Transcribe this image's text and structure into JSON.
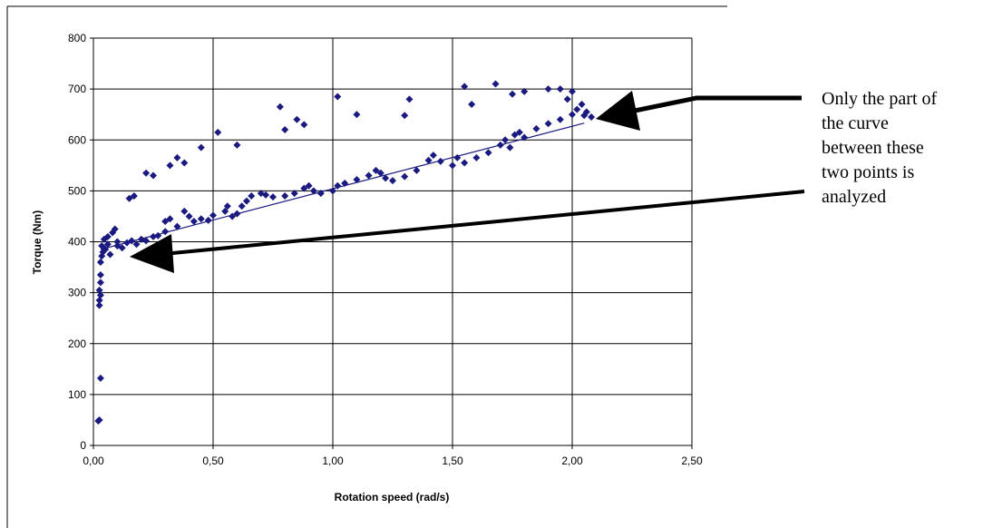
{
  "chart_data": {
    "type": "scatter",
    "title": "",
    "xlabel": "Rotation speed (rad/s)",
    "ylabel": "Torque (Nm)",
    "xlim": [
      0,
      2.5
    ],
    "ylim": [
      0,
      800
    ],
    "xticks": [
      0,
      0.5,
      1,
      1.5,
      2,
      2.5
    ],
    "xtick_labels": [
      "0,00",
      "0,50",
      "1,00",
      "1,50",
      "2,00",
      "2,50"
    ],
    "yticks": [
      0,
      100,
      200,
      300,
      400,
      500,
      600,
      700,
      800
    ],
    "ytick_labels": [
      "0",
      "100",
      "200",
      "300",
      "400",
      "500",
      "600",
      "700",
      "800"
    ],
    "grid": true,
    "marker_color": "#1a1a80",
    "series": [
      {
        "points": [
          [
            0.02,
            48
          ],
          [
            0.025,
            50
          ],
          [
            0.03,
            132
          ],
          [
            0.025,
            275
          ],
          [
            0.025,
            285
          ],
          [
            0.03,
            295
          ],
          [
            0.025,
            305
          ],
          [
            0.03,
            320
          ],
          [
            0.03,
            335
          ],
          [
            0.03,
            360
          ],
          [
            0.035,
            372
          ],
          [
            0.04,
            380
          ],
          [
            0.035,
            392
          ],
          [
            0.045,
            405
          ],
          [
            0.05,
            385
          ],
          [
            0.06,
            395
          ],
          [
            0.07,
            375
          ],
          [
            0.06,
            410
          ],
          [
            0.08,
            418
          ],
          [
            0.09,
            425
          ],
          [
            0.1,
            400
          ],
          [
            0.1,
            392
          ],
          [
            0.12,
            388
          ],
          [
            0.14,
            398
          ],
          [
            0.16,
            402
          ],
          [
            0.18,
            395
          ],
          [
            0.2,
            405
          ],
          [
            0.22,
            402
          ],
          [
            0.25,
            410
          ],
          [
            0.27,
            412
          ],
          [
            0.3,
            420
          ],
          [
            0.3,
            440
          ],
          [
            0.32,
            445
          ],
          [
            0.35,
            430
          ],
          [
            0.38,
            460
          ],
          [
            0.4,
            450
          ],
          [
            0.42,
            440
          ],
          [
            0.45,
            445
          ],
          [
            0.48,
            442
          ],
          [
            0.5,
            452
          ],
          [
            0.55,
            460
          ],
          [
            0.56,
            470
          ],
          [
            0.58,
            450
          ],
          [
            0.6,
            455
          ],
          [
            0.62,
            470
          ],
          [
            0.64,
            480
          ],
          [
            0.66,
            490
          ],
          [
            0.7,
            495
          ],
          [
            0.72,
            492
          ],
          [
            0.75,
            488
          ],
          [
            0.8,
            490
          ],
          [
            0.84,
            495
          ],
          [
            0.88,
            505
          ],
          [
            0.9,
            510
          ],
          [
            0.92,
            500
          ],
          [
            0.95,
            495
          ],
          [
            1.0,
            500
          ],
          [
            1.02,
            510
          ],
          [
            1.05,
            515
          ],
          [
            1.1,
            522
          ],
          [
            1.15,
            530
          ],
          [
            1.18,
            540
          ],
          [
            1.2,
            535
          ],
          [
            1.22,
            525
          ],
          [
            1.25,
            520
          ],
          [
            1.3,
            528
          ],
          [
            1.35,
            540
          ],
          [
            1.4,
            560
          ],
          [
            1.42,
            570
          ],
          [
            1.45,
            558
          ],
          [
            1.5,
            550
          ],
          [
            1.52,
            565
          ],
          [
            1.55,
            555
          ],
          [
            1.6,
            565
          ],
          [
            1.65,
            575
          ],
          [
            1.7,
            590
          ],
          [
            1.72,
            600
          ],
          [
            1.74,
            585
          ],
          [
            1.76,
            610
          ],
          [
            1.78,
            615
          ],
          [
            1.8,
            605
          ],
          [
            1.85,
            622
          ],
          [
            1.9,
            632
          ],
          [
            1.95,
            640
          ],
          [
            2.0,
            650
          ],
          [
            2.02,
            660
          ],
          [
            2.04,
            670
          ],
          [
            2.05,
            648
          ],
          [
            2.06,
            655
          ],
          [
            2.08,
            645
          ],
          [
            0.15,
            485
          ],
          [
            0.17,
            490
          ],
          [
            0.22,
            535
          ],
          [
            0.25,
            530
          ],
          [
            0.32,
            550
          ],
          [
            0.35,
            565
          ],
          [
            0.38,
            555
          ],
          [
            0.45,
            585
          ],
          [
            0.52,
            615
          ],
          [
            0.6,
            590
          ],
          [
            0.78,
            665
          ],
          [
            0.8,
            620
          ],
          [
            0.85,
            640
          ],
          [
            0.88,
            630
          ],
          [
            1.02,
            685
          ],
          [
            1.1,
            650
          ],
          [
            1.3,
            648
          ],
          [
            1.32,
            680
          ],
          [
            1.55,
            705
          ],
          [
            1.58,
            670
          ],
          [
            1.68,
            710
          ],
          [
            1.75,
            690
          ],
          [
            1.8,
            695
          ],
          [
            1.9,
            700
          ],
          [
            1.95,
            700
          ],
          [
            2.0,
            695
          ],
          [
            1.98,
            680
          ]
        ]
      }
    ],
    "trend_line": {
      "x": [
        0.03,
        2.05
      ],
      "y": [
        385,
        633
      ]
    }
  },
  "annotation": {
    "text": "Only the part of\nthe curve\nbetween these\ntwo points is\nanalyzed"
  }
}
